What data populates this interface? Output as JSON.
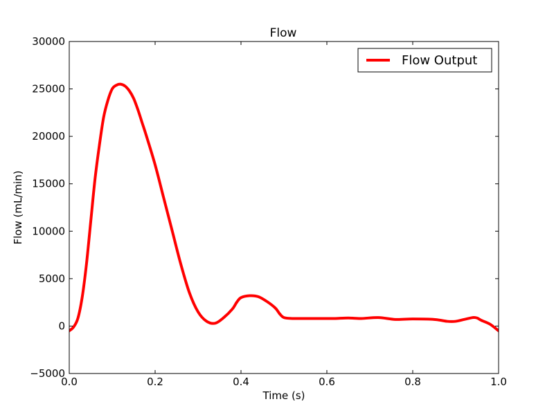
{
  "chart_data": {
    "type": "line",
    "title": "Flow",
    "xlabel": "Time (s)",
    "ylabel": "Flow (mL/min)",
    "xlim": [
      0.0,
      1.0
    ],
    "ylim": [
      -5000,
      30000
    ],
    "xticks": [
      0.0,
      0.2,
      0.4,
      0.6,
      0.8,
      1.0
    ],
    "xtick_labels": [
      "0.0",
      "0.2",
      "0.4",
      "0.6",
      "0.8",
      "1.0"
    ],
    "yticks": [
      -5000,
      0,
      5000,
      10000,
      15000,
      20000,
      25000,
      30000
    ],
    "ytick_labels": [
      "−5000",
      "0",
      "5000",
      "10000",
      "15000",
      "20000",
      "25000",
      "30000"
    ],
    "grid": false,
    "legend_position": "top-right",
    "series": [
      {
        "name": "Flow Output",
        "color": "#ff0000",
        "x": [
          0.0,
          0.01,
          0.02,
          0.03,
          0.04,
          0.05,
          0.06,
          0.07,
          0.08,
          0.09,
          0.1,
          0.11,
          0.12,
          0.13,
          0.14,
          0.15,
          0.16,
          0.17,
          0.18,
          0.2,
          0.22,
          0.24,
          0.26,
          0.28,
          0.3,
          0.32,
          0.34,
          0.36,
          0.38,
          0.39,
          0.4,
          0.42,
          0.44,
          0.46,
          0.48,
          0.49,
          0.5,
          0.52,
          0.54,
          0.56,
          0.58,
          0.6,
          0.62,
          0.65,
          0.68,
          0.72,
          0.76,
          0.8,
          0.85,
          0.88,
          0.9,
          0.92,
          0.94,
          0.95,
          0.96,
          0.98,
          1.0
        ],
        "y": [
          -500,
          -100,
          800,
          3000,
          6500,
          11000,
          15500,
          19000,
          22000,
          23800,
          25000,
          25400,
          25500,
          25300,
          24800,
          24000,
          22800,
          21400,
          20000,
          17000,
          13500,
          10000,
          6500,
          3500,
          1500,
          500,
          300,
          900,
          1800,
          2500,
          3000,
          3200,
          3100,
          2600,
          1900,
          1300,
          900,
          800,
          800,
          800,
          800,
          800,
          800,
          850,
          800,
          900,
          700,
          750,
          700,
          500,
          500,
          700,
          900,
          850,
          600,
          200,
          -500
        ]
      }
    ]
  }
}
